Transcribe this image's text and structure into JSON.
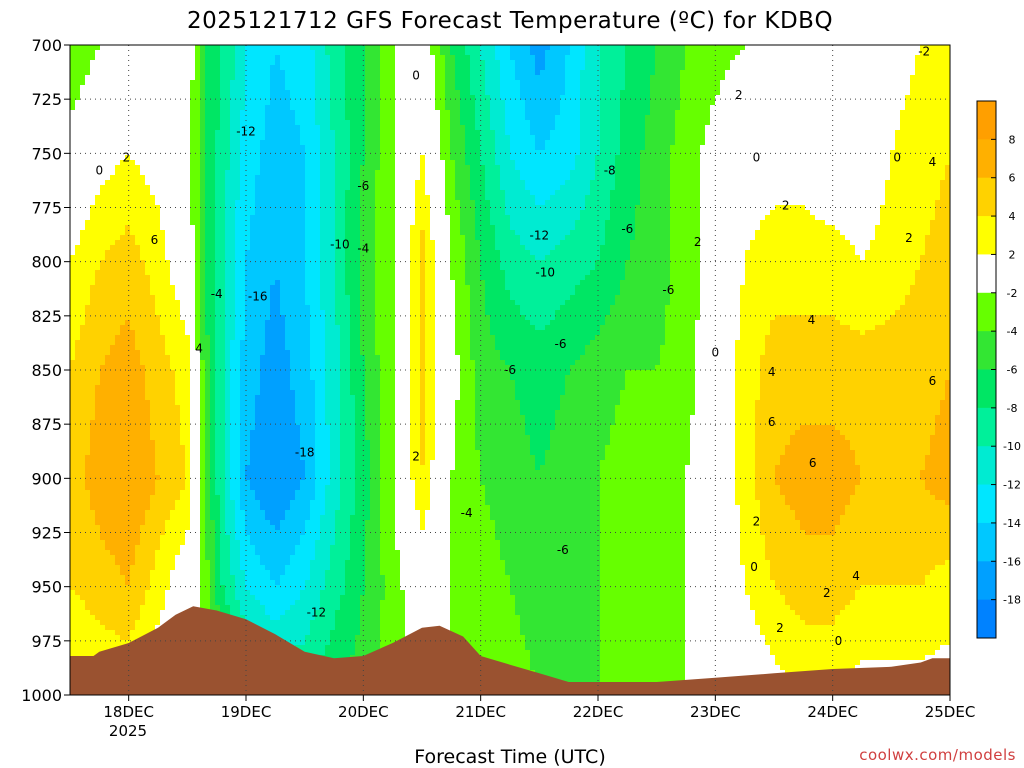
{
  "chart_data": {
    "type": "heatmap",
    "title": "2025121712 GFS Forecast Temperature (ºC) for KDBQ",
    "xlabel": "Forecast Time (UTC)",
    "ylabel": "",
    "credit": "coolwx.com/models",
    "x_ticks": [
      "18DEC",
      "19DEC",
      "20DEC",
      "21DEC",
      "22DEC",
      "23DEC",
      "24DEC",
      "25DEC"
    ],
    "x_year_label": "2025",
    "y_ticks": [
      "700",
      "725",
      "750",
      "775",
      "800",
      "825",
      "850",
      "875",
      "900",
      "925",
      "950",
      "975",
      "1000"
    ],
    "y_range_hPa": [
      700,
      1000
    ],
    "x_range_days": [
      17.5,
      25.0
    ],
    "grid": true,
    "colorbar": {
      "labels": [
        "8",
        "6",
        "4",
        "2",
        "-2",
        "-4",
        "-6",
        "-8",
        "-10",
        "-12",
        "-14",
        "-16",
        "-18"
      ],
      "bins": [
        {
          "min": 8,
          "max": 10,
          "color": "#ff9f00"
        },
        {
          "min": 6,
          "max": 8,
          "color": "#ffb000"
        },
        {
          "min": 4,
          "max": 6,
          "color": "#ffd200"
        },
        {
          "min": 2,
          "max": 4,
          "color": "#ffff00"
        },
        {
          "min": -2,
          "max": 2,
          "color": "#ffffff"
        },
        {
          "min": -4,
          "max": -2,
          "color": "#66ff00"
        },
        {
          "min": -6,
          "max": -4,
          "color": "#33e633"
        },
        {
          "min": -8,
          "max": -6,
          "color": "#00e664"
        },
        {
          "min": -10,
          "max": -8,
          "color": "#00f09a"
        },
        {
          "min": -12,
          "max": -10,
          "color": "#00ebd2"
        },
        {
          "min": -14,
          "max": -12,
          "color": "#00e6ff"
        },
        {
          "min": -16,
          "max": -14,
          "color": "#00c8ff"
        },
        {
          "min": -18,
          "max": -16,
          "color": "#00a0ff"
        },
        {
          "min": -20,
          "max": -18,
          "color": "#0082ff"
        }
      ]
    },
    "time_days": [
      17.5,
      17.75,
      18.0,
      18.25,
      18.5,
      18.65,
      18.8,
      19.0,
      19.25,
      19.5,
      19.75,
      20.0,
      20.25,
      20.5,
      20.75,
      21.0,
      21.25,
      21.5,
      21.75,
      22.0,
      22.25,
      22.5,
      22.75,
      23.0,
      23.25,
      23.5,
      23.75,
      24.0,
      24.25,
      24.5,
      24.75,
      25.0
    ],
    "levels_hPa": [
      700,
      750,
      800,
      850,
      900,
      950,
      1000
    ],
    "temperature_C": [
      [
        -4,
        -2,
        -1,
        0,
        0,
        -6,
        -8,
        -12,
        -14,
        -13,
        -9,
        -6,
        -2,
        0,
        -6,
        -10,
        -14,
        -17,
        -14,
        -10,
        -8,
        -6,
        -4,
        -3,
        -2,
        -2,
        -2,
        -1,
        0,
        1,
        2,
        2
      ],
      [
        -1,
        1,
        2,
        1,
        -1,
        -6,
        -9,
        -13,
        -15,
        -14,
        -10,
        -6,
        -2,
        2,
        -4,
        -8,
        -12,
        -14,
        -13,
        -10,
        -7,
        -5,
        -3,
        -1,
        1,
        1,
        1,
        0,
        0,
        2,
        3,
        4
      ],
      [
        2,
        4,
        5,
        3,
        0,
        -6,
        -10,
        -14,
        -16,
        -14,
        -10,
        -5,
        -2,
        5,
        -2,
        -6,
        -9,
        -10,
        -9,
        -8,
        -6,
        -5,
        -3,
        -1,
        2,
        3,
        3,
        3,
        2,
        3,
        4,
        5
      ],
      [
        4,
        6,
        7,
        5,
        3,
        -5,
        -10,
        -15,
        -17,
        -15,
        -11,
        -6,
        -2,
        5,
        -1,
        -5,
        -6,
        -7,
        -6,
        -5,
        -4,
        -4,
        -3,
        0,
        3,
        5,
        5,
        5,
        5,
        5,
        5,
        6
      ],
      [
        5,
        7,
        8,
        6,
        4,
        -4,
        -10,
        -16,
        -18,
        -16,
        -11,
        -7,
        -2,
        4,
        -2,
        -4,
        -5,
        -6,
        -5,
        -4,
        -3,
        -3,
        -2,
        0,
        3,
        6,
        7,
        7,
        6,
        6,
        6,
        7
      ],
      [
        4,
        5,
        6,
        3,
        0,
        -3,
        -8,
        -12,
        -14,
        -12,
        -9,
        -6,
        -3,
        0,
        -2,
        -3,
        -4,
        -5,
        -5,
        -4,
        -3,
        -3,
        -2,
        -1,
        2,
        4,
        5,
        5,
        4,
        4,
        4,
        3
      ],
      [
        1,
        2,
        2,
        0,
        -1,
        -2,
        -4,
        -6,
        -8,
        -8,
        -6,
        -5,
        -3,
        -1,
        -2,
        -3,
        -3,
        -4,
        -4,
        -4,
        -3,
        -3,
        -2,
        -1,
        0,
        1,
        2,
        2,
        1,
        1,
        1,
        1
      ]
    ],
    "terrain_hPa": [
      [
        17.5,
        982
      ],
      [
        17.7,
        982
      ],
      [
        17.75,
        980
      ],
      [
        18.0,
        976
      ],
      [
        18.25,
        969
      ],
      [
        18.4,
        963
      ],
      [
        18.55,
        959
      ],
      [
        18.75,
        961
      ],
      [
        19.0,
        965
      ],
      [
        19.25,
        972
      ],
      [
        19.5,
        980
      ],
      [
        19.75,
        983
      ],
      [
        20.0,
        982
      ],
      [
        20.25,
        976
      ],
      [
        20.5,
        969
      ],
      [
        20.65,
        968
      ],
      [
        20.85,
        973
      ],
      [
        21.0,
        982
      ],
      [
        21.25,
        986
      ],
      [
        21.5,
        990
      ],
      [
        21.75,
        994
      ],
      [
        22.0,
        994
      ],
      [
        22.5,
        994
      ],
      [
        23.0,
        992
      ],
      [
        23.5,
        990
      ],
      [
        24.0,
        988
      ],
      [
        24.5,
        987
      ],
      [
        24.75,
        985
      ],
      [
        24.85,
        983
      ],
      [
        25.0,
        983
      ]
    ],
    "contour_labels": [
      {
        "t": 17.75,
        "p": 758,
        "text": "0"
      },
      {
        "t": 17.98,
        "p": 752,
        "text": "2"
      },
      {
        "t": 18.22,
        "p": 790,
        "text": "6"
      },
      {
        "t": 18.6,
        "p": 840,
        "text": "4"
      },
      {
        "t": 18.75,
        "p": 815,
        "text": "-4"
      },
      {
        "t": 19.0,
        "p": 740,
        "text": "-12"
      },
      {
        "t": 19.1,
        "p": 816,
        "text": "-16"
      },
      {
        "t": 19.5,
        "p": 888,
        "text": "-18"
      },
      {
        "t": 19.6,
        "p": 962,
        "text": "-12"
      },
      {
        "t": 19.8,
        "p": 792,
        "text": "-10"
      },
      {
        "t": 20.0,
        "p": 765,
        "text": "-6"
      },
      {
        "t": 20.0,
        "p": 794,
        "text": "-4"
      },
      {
        "t": 20.45,
        "p": 714,
        "text": "0"
      },
      {
        "t": 20.45,
        "p": 890,
        "text": "2"
      },
      {
        "t": 20.88,
        "p": 916,
        "text": "-4"
      },
      {
        "t": 21.25,
        "p": 850,
        "text": "-6"
      },
      {
        "t": 21.5,
        "p": 788,
        "text": "-12"
      },
      {
        "t": 21.55,
        "p": 805,
        "text": "-10"
      },
      {
        "t": 21.68,
        "p": 838,
        "text": "-6"
      },
      {
        "t": 21.7,
        "p": 933,
        "text": "-6"
      },
      {
        "t": 22.1,
        "p": 758,
        "text": "-8"
      },
      {
        "t": 22.25,
        "p": 785,
        "text": "-6"
      },
      {
        "t": 22.6,
        "p": 813,
        "text": "-6"
      },
      {
        "t": 22.85,
        "p": 791,
        "text": "2"
      },
      {
        "t": 23.0,
        "p": 842,
        "text": "0"
      },
      {
        "t": 23.2,
        "p": 723,
        "text": "2"
      },
      {
        "t": 23.35,
        "p": 752,
        "text": "0"
      },
      {
        "t": 23.35,
        "p": 920,
        "text": "2"
      },
      {
        "t": 23.33,
        "p": 941,
        "text": "0"
      },
      {
        "t": 23.55,
        "p": 969,
        "text": "2"
      },
      {
        "t": 23.48,
        "p": 851,
        "text": "4"
      },
      {
        "t": 23.48,
        "p": 874,
        "text": "6"
      },
      {
        "t": 23.6,
        "p": 774,
        "text": "2"
      },
      {
        "t": 23.82,
        "p": 827,
        "text": "4"
      },
      {
        "t": 23.83,
        "p": 893,
        "text": "6"
      },
      {
        "t": 23.95,
        "p": 953,
        "text": "2"
      },
      {
        "t": 24.05,
        "p": 975,
        "text": "0"
      },
      {
        "t": 24.2,
        "p": 945,
        "text": "4"
      },
      {
        "t": 24.55,
        "p": 752,
        "text": "0"
      },
      {
        "t": 24.65,
        "p": 789,
        "text": "2"
      },
      {
        "t": 24.85,
        "p": 855,
        "text": "6"
      },
      {
        "t": 24.85,
        "p": 754,
        "text": "4"
      },
      {
        "t": 24.78,
        "p": 703,
        "text": "-2"
      }
    ]
  }
}
